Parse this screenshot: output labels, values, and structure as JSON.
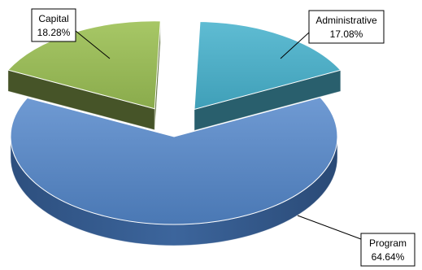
{
  "chart_data": {
    "type": "pie",
    "subtype": "3d-exploded",
    "title": "",
    "slices": [
      {
        "name": "Program",
        "value": 64.64,
        "label": "64.64%",
        "color": "#4F81BD",
        "exploded": false
      },
      {
        "name": "Administrative",
        "value": 17.08,
        "label": "17.08%",
        "color": "#4BACC6",
        "exploded": true
      },
      {
        "name": "Capital",
        "value": 18.28,
        "label": "18.28%",
        "color": "#9BBB59",
        "exploded": true
      }
    ],
    "legend": "none",
    "data_labels": "callouts"
  }
}
